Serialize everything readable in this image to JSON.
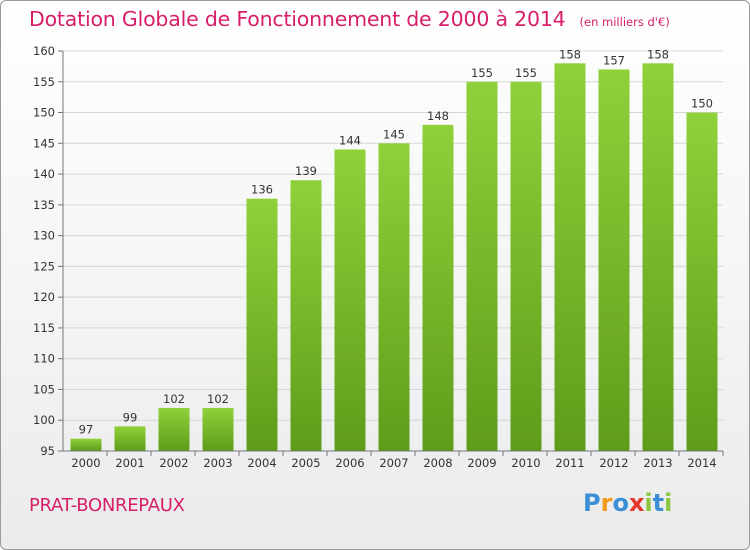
{
  "header": {
    "title": "Dotation Globale de Fonctionnement de 2000 à 2014",
    "unit": "(en milliers d'€)"
  },
  "place": "PRAT-BONREPAUX",
  "logo": {
    "text": "Proxiti",
    "letters": [
      "P",
      "r",
      "o",
      "x",
      "i",
      "t",
      "i"
    ],
    "colors": [
      "#3a8fd6",
      "#f29a1d",
      "#3a8fd6",
      "#e6342a",
      "#8cc63f",
      "#3a8fd6",
      "#8cc63f"
    ]
  },
  "chart_data": {
    "type": "bar",
    "categories": [
      "2000",
      "2001",
      "2002",
      "2003",
      "2004",
      "2005",
      "2006",
      "2007",
      "2008",
      "2009",
      "2010",
      "2011",
      "2012",
      "2013",
      "2014"
    ],
    "values": [
      97,
      99,
      102,
      102,
      136,
      139,
      144,
      145,
      148,
      155,
      155,
      158,
      157,
      158,
      150
    ],
    "ylim": [
      95,
      160
    ],
    "yticks": [
      95,
      100,
      105,
      110,
      115,
      120,
      125,
      130,
      135,
      140,
      145,
      150,
      155,
      160
    ],
    "grid": true,
    "bar_color": "#7cc22e",
    "bar_color_dark": "#5a9a18"
  }
}
